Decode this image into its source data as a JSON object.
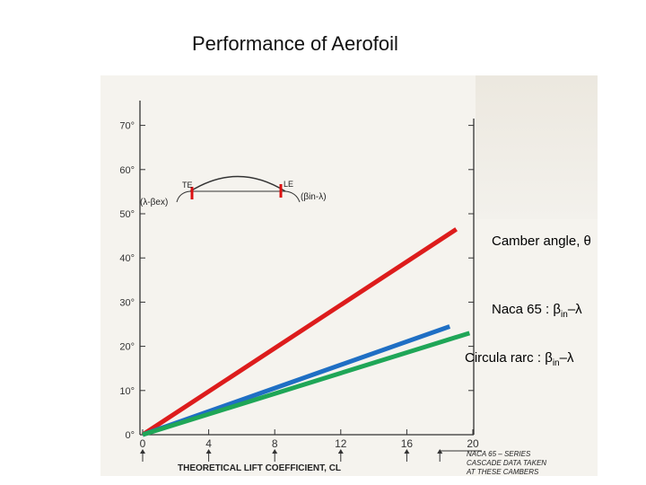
{
  "slide": {
    "title": "Performance of Aerofoil"
  },
  "annotations": {
    "camber": "Camber angle, θ",
    "naca_prefix": "Naca 65 : ",
    "circ_prefix": "Circula rarc : ",
    "beta": "β",
    "beta_sub": "in",
    "minus_lambda": "–λ"
  },
  "inset": {
    "te": "TE",
    "le": "LE",
    "left_angle": "(λ-βex)",
    "right_angle": "(βin-λ)"
  },
  "scan_notes": {
    "line1": "NACA 65 – SERIES",
    "line2": "CASCADE DATA TAKEN",
    "line3": "AT THESE CAMBERS"
  },
  "chart_data": {
    "type": "line",
    "xlabel": "THEORETICAL LIFT COEFFICIENT, CL",
    "x_ticks": [
      "0",
      "4",
      "8",
      "12",
      "16",
      "20"
    ],
    "y_ticks": [
      "0°",
      "10°",
      "20°",
      "30°",
      "40°",
      "50°",
      "60°",
      "70°"
    ],
    "xlim": [
      0,
      20
    ],
    "ylim": [
      0,
      70
    ],
    "series": [
      {
        "name": "Camber angle, θ",
        "color": "#dd1c1c",
        "x": [
          0,
          19
        ],
        "y": [
          0,
          46.5
        ]
      },
      {
        "name": "Naca 65 : βin–λ",
        "color": "#1f6fc4",
        "x": [
          0,
          18.6
        ],
        "y": [
          0,
          24.5
        ]
      },
      {
        "name": "Circula rarc : βin–λ",
        "color": "#1fa657",
        "x": [
          0,
          19.8
        ],
        "y": [
          0,
          23
        ]
      }
    ],
    "arrows_x": [
      0,
      4,
      8,
      12,
      16,
      18
    ]
  }
}
